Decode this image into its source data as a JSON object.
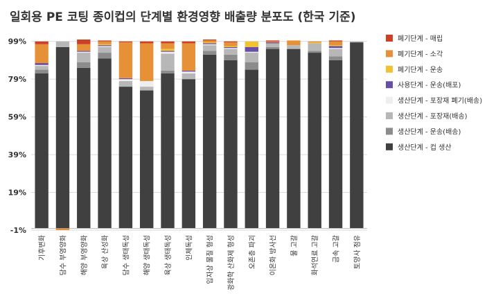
{
  "chart_data": {
    "type": "bar",
    "stacked": true,
    "title": "일회용 PE 코팅 종이컵의 단계별 환경영향 배출량 분포도 (한국 기준)",
    "xlabel": "",
    "ylabel": "",
    "ylim": [
      -1,
      100
    ],
    "yticks": [
      -1,
      19,
      39,
      59,
      79,
      99
    ],
    "ytick_labels": [
      "-1%",
      "19%",
      "39%",
      "59%",
      "79%",
      "99%"
    ],
    "grid": true,
    "legend_position": "right",
    "categories": [
      "기후변화",
      "담수 부영양화",
      "해양 부영양화",
      "육상 산성화",
      "담수 생태독성",
      "해양 생태독성",
      "육상 생태독성",
      "인체독성",
      "입자상 물질 형성",
      "광화학 산화제 형성",
      "오존층 파괴",
      "이온화 방사선",
      "물 고갈",
      "화석연료 고갈",
      "금속 고갈",
      "토양사 점유"
    ],
    "series": [
      {
        "name": "생산단계 - 컵 생산",
        "color": "#404040",
        "values": [
          82,
          96,
          85,
          90,
          75,
          73,
          82,
          79,
          92,
          89,
          84,
          95,
          95,
          93,
          89,
          98.5
        ]
      },
      {
        "name": "생산단계 - 운송(배송)",
        "color": "#8c8c8c",
        "values": [
          2,
          0,
          3,
          3,
          0,
          0,
          1.5,
          0,
          2,
          3,
          4,
          1,
          0,
          1,
          2,
          0
        ]
      },
      {
        "name": "생산단계 - 포장재(배송)",
        "color": "#b7b7b7",
        "values": [
          2,
          3,
          5,
          3,
          3,
          2,
          9,
          3,
          3,
          3,
          5,
          2,
          2,
          4,
          4,
          0.5
        ]
      },
      {
        "name": "생산단계 - 포장재 폐기(배송)",
        "color": "#eeeeee",
        "values": [
          0.5,
          0,
          0.5,
          0.5,
          1,
          3,
          1,
          1,
          0.5,
          0.5,
          0.5,
          0,
          0,
          0,
          0.5,
          0
        ]
      },
      {
        "name": "사용단계 - 운송(배포)",
        "color": "#674ea7",
        "values": [
          1,
          0,
          0.5,
          0.5,
          0.5,
          0,
          0.5,
          0.5,
          0.5,
          0.5,
          2.5,
          0.5,
          0,
          0,
          1,
          0
        ]
      },
      {
        "name": "폐기단계 - 운송",
        "color": "#f1c232",
        "values": [
          0,
          0,
          0,
          0.5,
          0,
          0,
          1,
          0,
          0.5,
          0.5,
          3,
          0,
          0,
          0.5,
          0.5,
          0
        ]
      },
      {
        "name": "폐기단계 - 소각",
        "color": "#e69138",
        "values": [
          10,
          -1,
          3.5,
          1.5,
          19,
          20,
          3,
          14.5,
          1,
          2,
          0,
          0.5,
          2.5,
          0.5,
          2,
          0
        ]
      },
      {
        "name": "폐기단계 - 매립",
        "color": "#cc4125",
        "values": [
          1.5,
          0,
          2.5,
          0.5,
          0.5,
          1,
          1,
          1,
          0.5,
          0.5,
          0,
          0.5,
          0,
          0,
          0.5,
          0
        ]
      }
    ],
    "legend_order": [
      "폐기단계 - 매립",
      "폐기단계 - 소각",
      "폐기단계 - 운송",
      "사용단계 - 운송(배포)",
      "생산단계 - 포장재 폐기(배송)",
      "생산단계 - 포장재(배송)",
      "생산단계 - 운송(배송)",
      "생산단계 - 컵 생산"
    ]
  }
}
